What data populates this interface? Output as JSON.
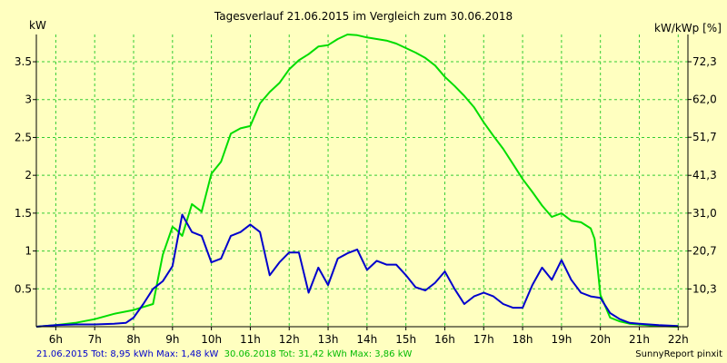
{
  "chart_data": {
    "type": "line",
    "title": "Tagesverlauf 21.06.2015 im Vergleich zum 30.06.2018",
    "ylabel": "kW",
    "ylabel_right": "kW/kWp [%]",
    "x_ticks": [
      "6h",
      "7h",
      "8h",
      "9h",
      "10h",
      "11h",
      "12h",
      "13h",
      "14h",
      "15h",
      "16h",
      "17h",
      "18h",
      "19h",
      "20h",
      "21h",
      "22h"
    ],
    "xlim": [
      5.5,
      22.25
    ],
    "y_ticks": [
      0.5,
      1,
      1.5,
      2,
      2.5,
      3,
      3.5
    ],
    "y_tick_labels": [
      "0.5",
      "1",
      "1.5",
      "2",
      "2.5",
      "3",
      "3.5"
    ],
    "ylim": [
      0,
      3.86
    ],
    "y2_ticks": [
      10.3,
      20.7,
      31.0,
      41.3,
      51.7,
      62.0,
      72.3
    ],
    "y2_tick_labels": [
      "10,3",
      "20,7",
      "31,0",
      "41,3",
      "51,7",
      "62,0",
      "72,3"
    ],
    "grid": true,
    "series": [
      {
        "name": "21.06.2015",
        "color": "#0000CC",
        "x": [
          5.5,
          6.0,
          6.5,
          7.0,
          7.5,
          7.8,
          8.0,
          8.25,
          8.5,
          8.75,
          9.0,
          9.25,
          9.5,
          9.75,
          10.0,
          10.25,
          10.5,
          10.75,
          11.0,
          11.25,
          11.5,
          11.75,
          12.0,
          12.25,
          12.5,
          12.75,
          13.0,
          13.25,
          13.5,
          13.75,
          14.0,
          14.25,
          14.5,
          14.75,
          15.0,
          15.25,
          15.5,
          15.75,
          16.0,
          16.25,
          16.5,
          16.75,
          17.0,
          17.25,
          17.5,
          17.75,
          18.0,
          18.25,
          18.5,
          18.75,
          19.0,
          19.25,
          19.5,
          19.75,
          20.0,
          20.25,
          20.5,
          20.75,
          21.0,
          21.25,
          21.5,
          22.0
        ],
        "values": [
          0.0,
          0.02,
          0.03,
          0.03,
          0.04,
          0.05,
          0.12,
          0.3,
          0.5,
          0.6,
          0.8,
          1.48,
          1.25,
          1.2,
          0.85,
          0.9,
          1.2,
          1.25,
          1.35,
          1.25,
          0.68,
          0.85,
          0.98,
          0.98,
          0.45,
          0.78,
          0.55,
          0.9,
          0.97,
          1.02,
          0.75,
          0.87,
          0.82,
          0.82,
          0.68,
          0.52,
          0.48,
          0.58,
          0.73,
          0.5,
          0.3,
          0.4,
          0.45,
          0.4,
          0.3,
          0.25,
          0.25,
          0.55,
          0.78,
          0.62,
          0.88,
          0.62,
          0.45,
          0.4,
          0.38,
          0.18,
          0.1,
          0.05,
          0.04,
          0.03,
          0.02,
          0.01
        ]
      },
      {
        "name": "30.06.2018",
        "color": "#00DD00",
        "x": [
          5.5,
          6.0,
          6.5,
          7.0,
          7.5,
          8.0,
          8.5,
          8.75,
          9.0,
          9.1,
          9.25,
          9.5,
          9.75,
          10.0,
          10.25,
          10.5,
          10.75,
          11.0,
          11.25,
          11.5,
          11.75,
          12.0,
          12.25,
          12.5,
          12.75,
          13.0,
          13.25,
          13.5,
          13.75,
          14.0,
          14.25,
          14.5,
          14.75,
          15.0,
          15.25,
          15.5,
          15.75,
          16.0,
          16.25,
          16.5,
          16.75,
          17.0,
          17.25,
          17.5,
          17.75,
          18.0,
          18.25,
          18.5,
          18.75,
          19.0,
          19.25,
          19.5,
          19.75,
          19.85,
          20.0,
          20.25,
          20.5,
          20.75,
          21.0,
          21.5,
          22.0
        ],
        "values": [
          0.0,
          0.02,
          0.05,
          0.1,
          0.17,
          0.22,
          0.3,
          0.95,
          1.32,
          1.28,
          1.2,
          1.62,
          1.52,
          2.02,
          2.18,
          2.55,
          2.62,
          2.65,
          2.95,
          3.1,
          3.22,
          3.4,
          3.52,
          3.6,
          3.7,
          3.72,
          3.8,
          3.86,
          3.85,
          3.82,
          3.8,
          3.78,
          3.74,
          3.68,
          3.62,
          3.55,
          3.45,
          3.3,
          3.18,
          3.05,
          2.9,
          2.7,
          2.52,
          2.35,
          2.15,
          1.95,
          1.78,
          1.6,
          1.45,
          1.5,
          1.4,
          1.38,
          1.3,
          1.16,
          0.42,
          0.12,
          0.07,
          0.04,
          0.03,
          0.01,
          0.0
        ]
      }
    ],
    "legend": {
      "text_2015": "21.06.2015 Tot: 8,95 kWh Max: 1,48 kW",
      "text_2018": "30.06.2018 Tot: 31,42 kWh Max: 3,86 kW"
    },
    "credit": "SunnyReport pinxit",
    "colors": {
      "background": "#FFFFC0",
      "grid": "#33CC33"
    }
  }
}
